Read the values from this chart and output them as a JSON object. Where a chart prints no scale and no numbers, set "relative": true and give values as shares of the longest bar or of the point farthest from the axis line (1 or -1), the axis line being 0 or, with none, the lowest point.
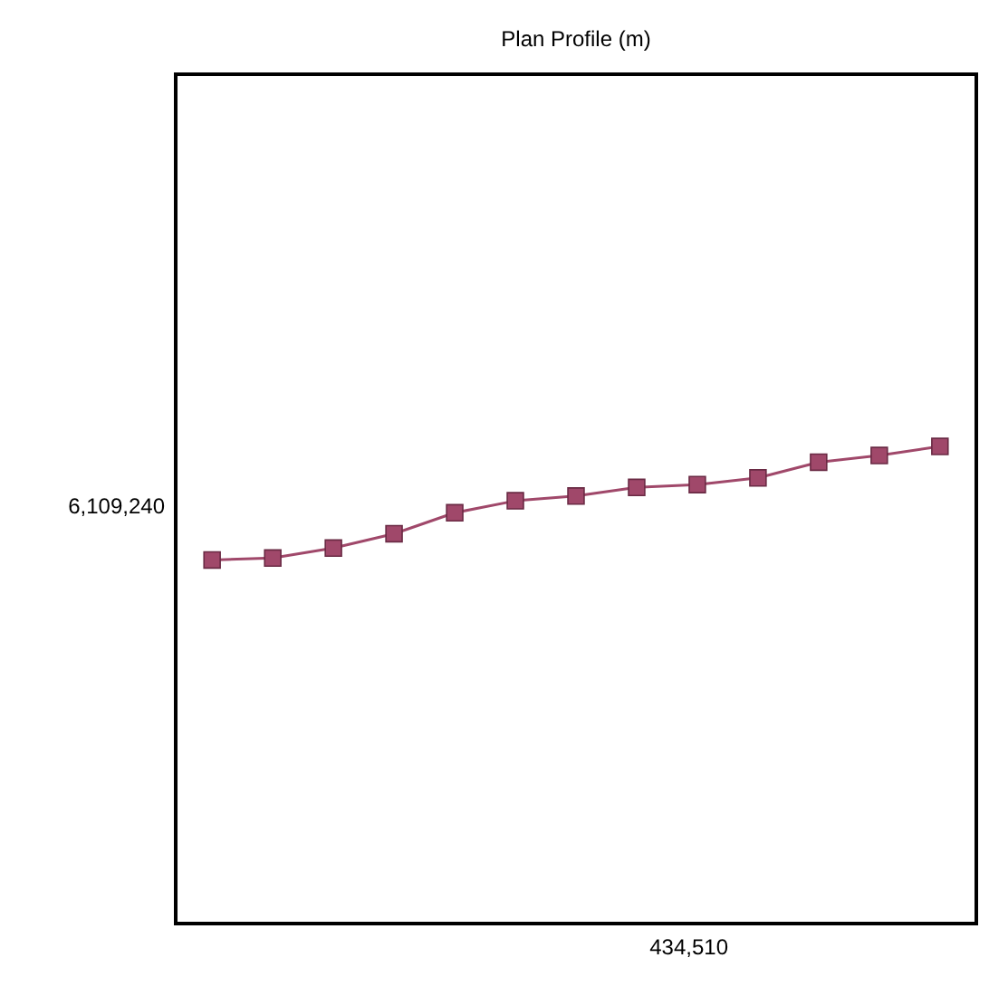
{
  "chart_data": {
    "type": "line",
    "title": "Plan Profile (m)",
    "relative": true,
    "categories": [
      null,
      null,
      null,
      null,
      null,
      null,
      null,
      null,
      null,
      null,
      null,
      null,
      null
    ],
    "series": [
      {
        "color": "#a0486a",
        "values": [
          0.762,
          0.766,
          0.787,
          0.817,
          0.861,
          0.886,
          0.896,
          0.914,
          0.92,
          0.934,
          0.967,
          0.981,
          1.0
        ]
      }
    ],
    "marker": "square",
    "line_style": "solid",
    "annotations": [
      "6,109,240",
      "434,510"
    ]
  }
}
